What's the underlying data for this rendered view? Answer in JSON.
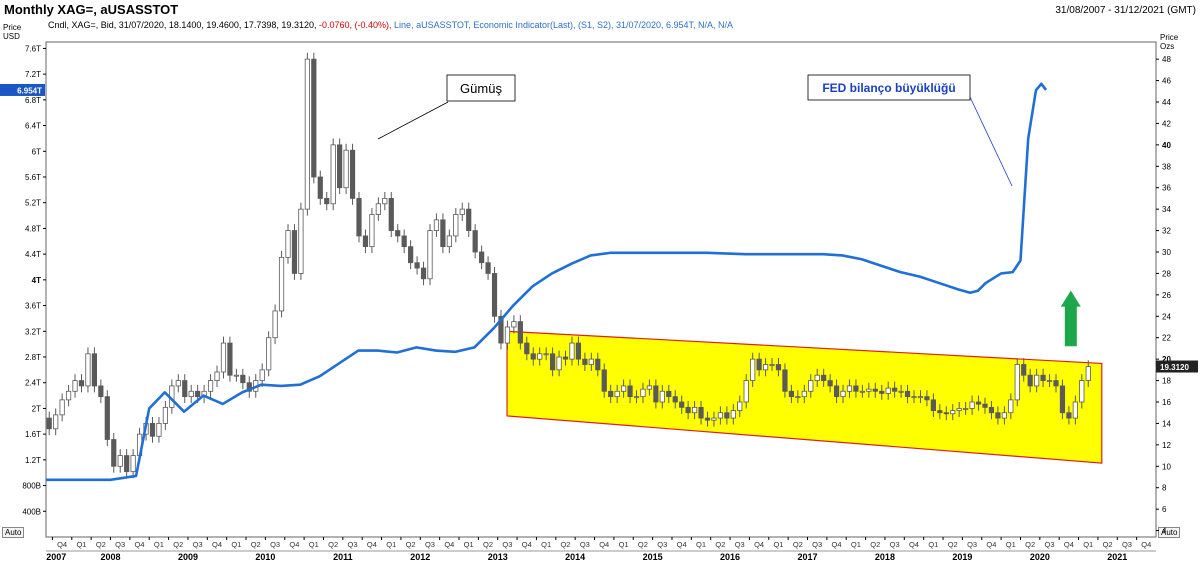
{
  "header": {
    "title": "Monthly XAG=, aUSASSTOT",
    "date_range": "31/08/2007 - 31/12/2021 (GMT)",
    "info_prefix": "Cndl, XAG=, Bid, 31/07/2020, 18.1400, 19.4600, 17.7398, 19.3120,",
    "info_change": "-0.0760, (-0.40%),",
    "info_line": "Line, aUSASSTOT, Economic Indicator(Last), (S1, S2), 31/07/2020, 6.954T, N/A, N/A"
  },
  "axes": {
    "left_unit_1": "Price",
    "left_unit_2": "USD",
    "right_unit_1": "Price",
    "right_unit_2": "Ozs",
    "auto_label": "Auto"
  },
  "annotations": {
    "silver": "Gümüş",
    "fed": "FED bilanço büyüklüğü"
  },
  "badges": {
    "left_value": "6.954T",
    "right_value": "19.3120"
  },
  "colors": {
    "fed_line": "#1f6fd6",
    "candle": "#5a5a5a",
    "channel_fill": "#ffff00",
    "channel_border": "#e02020",
    "arrow": "#1ca84a",
    "badge_blue": "#1a56c4",
    "fed_label": "#1a3fc4"
  },
  "chart_data": {
    "type": "line",
    "left_axis": {
      "unit": "USD",
      "ticks": [
        "400B",
        "800B",
        "1.2T",
        "1.6T",
        "2T",
        "2.4T",
        "2.8T",
        "3.2T",
        "3.6T",
        "4T",
        "4.4T",
        "4.8T",
        "5.2T",
        "5.6T",
        "6T",
        "6.4T",
        "6.8T",
        "7.2T",
        "7.6T"
      ],
      "bold_ticks": [
        "4T"
      ],
      "values": [
        0.4,
        0.8,
        1.2,
        1.6,
        2.0,
        2.4,
        2.8,
        3.2,
        3.6,
        4.0,
        4.4,
        4.8,
        5.2,
        5.6,
        6.0,
        6.4,
        6.8,
        7.2,
        7.6
      ],
      "ylim": [
        0.0,
        7.7
      ]
    },
    "right_axis": {
      "unit": "Ozs",
      "ticks": [
        "4",
        "6",
        "8",
        "10",
        "12",
        "14",
        "16",
        "18",
        "20",
        "22",
        "24",
        "26",
        "28",
        "30",
        "32",
        "34",
        "36",
        "38",
        "40",
        "42",
        "44",
        "46",
        "48"
      ],
      "bold_ticks": [
        "20",
        "40"
      ],
      "values": [
        4,
        6,
        8,
        10,
        12,
        14,
        16,
        18,
        20,
        22,
        24,
        26,
        28,
        30,
        32,
        34,
        36,
        38,
        40,
        42,
        44,
        46,
        48
      ],
      "ylim": [
        3.4,
        49.6
      ]
    },
    "x_axis": {
      "quarters": [
        "Q4",
        "Q1",
        "Q2",
        "Q3",
        "Q4",
        "Q1",
        "Q2",
        "Q3",
        "Q4",
        "Q1",
        "Q2",
        "Q3",
        "Q4",
        "Q1",
        "Q2",
        "Q3",
        "Q4",
        "Q1",
        "Q2",
        "Q3",
        "Q4",
        "Q1",
        "Q2",
        "Q3",
        "Q4",
        "Q1",
        "Q2",
        "Q3",
        "Q4",
        "Q1",
        "Q2",
        "Q3",
        "Q4",
        "Q1",
        "Q2",
        "Q3",
        "Q4",
        "Q1",
        "Q2",
        "Q3",
        "Q4",
        "Q1",
        "Q2",
        "Q3",
        "Q4",
        "Q1",
        "Q2",
        "Q3",
        "Q4",
        "Q1",
        "Q2",
        "Q3",
        "Q4",
        "Q1",
        "Q2",
        "Q3",
        "Q4",
        "Q1",
        "Q2",
        "Q3",
        "Q4"
      ],
      "years": [
        {
          "label": "2007",
          "x": 2007.8
        },
        {
          "label": "2008",
          "x": 2008.5
        },
        {
          "label": "2009",
          "x": 2009.5
        },
        {
          "label": "2010",
          "x": 2010.5
        },
        {
          "label": "2011",
          "x": 2011.5
        },
        {
          "label": "2012",
          "x": 2012.5
        },
        {
          "label": "2013",
          "x": 2013.5
        },
        {
          "label": "2014",
          "x": 2014.5
        },
        {
          "label": "2015",
          "x": 2015.5
        },
        {
          "label": "2016",
          "x": 2016.5
        },
        {
          "label": "2017",
          "x": 2017.5
        },
        {
          "label": "2018",
          "x": 2018.5
        },
        {
          "label": "2019",
          "x": 2019.5
        },
        {
          "label": "2020",
          "x": 2020.5
        },
        {
          "label": "2021",
          "x": 2021.5
        }
      ],
      "xlim": [
        2007.667,
        2022.0
      ]
    },
    "series": [
      {
        "axis": "left",
        "points": [
          [
            2007.67,
            0.89
          ],
          [
            2008.5,
            0.89
          ],
          [
            2008.83,
            0.95
          ],
          [
            2009.0,
            2.0
          ],
          [
            2009.2,
            2.25
          ],
          [
            2009.45,
            1.95
          ],
          [
            2009.7,
            2.2
          ],
          [
            2009.95,
            2.07
          ],
          [
            2010.2,
            2.25
          ],
          [
            2010.45,
            2.37
          ],
          [
            2010.7,
            2.35
          ],
          [
            2010.95,
            2.37
          ],
          [
            2011.2,
            2.5
          ],
          [
            2011.45,
            2.7
          ],
          [
            2011.7,
            2.9
          ],
          [
            2011.95,
            2.9
          ],
          [
            2012.2,
            2.87
          ],
          [
            2012.45,
            2.95
          ],
          [
            2012.7,
            2.9
          ],
          [
            2012.95,
            2.88
          ],
          [
            2013.2,
            2.95
          ],
          [
            2013.45,
            3.25
          ],
          [
            2013.7,
            3.6
          ],
          [
            2013.95,
            3.9
          ],
          [
            2014.2,
            4.1
          ],
          [
            2014.45,
            4.25
          ],
          [
            2014.7,
            4.38
          ],
          [
            2014.95,
            4.42
          ],
          [
            2015.2,
            4.42
          ],
          [
            2015.7,
            4.42
          ],
          [
            2016.2,
            4.42
          ],
          [
            2016.7,
            4.4
          ],
          [
            2017.2,
            4.4
          ],
          [
            2017.7,
            4.4
          ],
          [
            2017.95,
            4.38
          ],
          [
            2018.2,
            4.32
          ],
          [
            2018.45,
            4.22
          ],
          [
            2018.7,
            4.12
          ],
          [
            2018.95,
            4.05
          ],
          [
            2019.2,
            3.95
          ],
          [
            2019.45,
            3.85
          ],
          [
            2019.6,
            3.8
          ],
          [
            2019.7,
            3.83
          ],
          [
            2019.8,
            3.95
          ],
          [
            2020.0,
            4.1
          ],
          [
            2020.15,
            4.12
          ],
          [
            2020.25,
            4.3
          ],
          [
            2020.35,
            6.2
          ],
          [
            2020.45,
            6.95
          ],
          [
            2020.52,
            7.05
          ],
          [
            2020.58,
            6.954
          ]
        ]
      },
      {
        "axis": "right",
        "type": "candlestick",
        "months_per_candle": 1,
        "open": [
          14.5,
          13.5,
          14.8,
          16.2,
          17.0,
          18.0,
          17.5,
          20.5,
          17.5,
          16.5,
          12.5,
          10.0,
          11.0,
          9.5,
          11.0,
          13.0,
          14.0,
          12.8,
          14.0,
          15.5,
          17.5,
          18.0,
          16.5,
          17.0,
          16.5,
          17.0,
          18.0,
          18.8,
          21.5,
          18.5,
          18.5,
          17.8,
          17.0,
          18.0,
          19.0,
          22.0,
          24.5,
          29.5,
          32.0,
          28.0,
          34.0,
          48.0,
          37.0,
          35.0,
          34.5,
          40.0,
          36.0,
          39.5,
          35.0,
          31.5,
          30.5,
          33.5,
          34.5,
          35.0,
          32.0,
          31.5,
          30.5,
          29.0,
          28.5,
          27.5,
          32.0,
          33.0,
          30.5,
          31.5,
          33.5,
          34.0,
          32.0,
          30.0,
          29.0,
          28.0,
          24.0,
          21.5,
          23.0,
          23.5,
          21.5,
          20.5,
          20.0,
          20.5,
          20.5,
          19.0,
          20.2,
          20.0,
          21.5,
          20.0,
          19.5,
          20.0,
          19.0,
          17.0,
          16.5,
          17.0,
          17.5,
          16.5,
          16.5,
          17.2,
          17.5,
          16.0,
          17.0,
          16.5,
          16.0,
          15.5,
          15.0,
          15.5,
          14.5,
          14.3,
          14.5,
          15.0,
          14.5,
          15.2,
          16.0,
          18.0,
          20.0,
          19.0,
          19.5,
          19.5,
          19.0,
          17.0,
          16.5,
          16.5,
          17.0,
          18.0,
          18.5,
          18.0,
          17.5,
          16.5,
          17.0,
          17.5,
          17.0,
          17.0,
          17.2,
          17.0,
          16.8,
          17.3,
          17.0,
          17.0,
          16.5,
          16.5,
          16.5,
          16.2,
          15.2,
          15.0,
          14.9,
          15.2,
          15.4,
          15.4,
          16.0,
          15.8,
          15.5,
          15.0,
          14.5,
          15.0,
          16.2,
          19.5,
          18.5,
          17.5,
          18.5,
          18.0,
          18.0,
          17.5,
          15.0,
          14.5,
          16.0,
          18.0
        ],
        "close": [
          13.5,
          14.8,
          16.2,
          17.0,
          18.0,
          17.5,
          20.5,
          17.5,
          16.5,
          12.5,
          10.0,
          11.0,
          9.5,
          11.0,
          13.0,
          14.0,
          12.8,
          14.0,
          15.5,
          17.5,
          18.0,
          16.5,
          17.0,
          16.5,
          17.0,
          18.0,
          18.8,
          21.5,
          18.5,
          18.5,
          17.8,
          17.0,
          18.0,
          19.0,
          22.0,
          24.5,
          29.5,
          32.0,
          28.0,
          34.0,
          48.0,
          37.0,
          35.0,
          34.5,
          40.0,
          36.0,
          39.5,
          35.0,
          31.5,
          30.5,
          33.5,
          34.5,
          35.0,
          32.0,
          31.5,
          30.5,
          29.0,
          28.5,
          27.5,
          32.0,
          33.0,
          30.5,
          31.5,
          33.5,
          34.0,
          32.0,
          30.0,
          29.0,
          28.0,
          24.0,
          21.5,
          23.0,
          23.5,
          21.5,
          20.5,
          20.0,
          20.5,
          20.5,
          19.0,
          20.2,
          20.0,
          21.5,
          20.0,
          19.5,
          20.0,
          19.0,
          17.0,
          16.5,
          17.0,
          17.5,
          16.5,
          16.5,
          17.2,
          17.5,
          16.0,
          17.0,
          16.5,
          16.0,
          15.5,
          15.0,
          15.5,
          14.5,
          14.3,
          14.5,
          15.0,
          14.5,
          15.2,
          16.0,
          18.0,
          20.0,
          19.0,
          19.5,
          19.5,
          19.0,
          17.0,
          16.5,
          16.5,
          17.0,
          18.0,
          18.5,
          18.0,
          17.5,
          16.5,
          17.0,
          17.5,
          17.0,
          17.0,
          17.2,
          17.0,
          16.8,
          17.3,
          17.0,
          17.0,
          16.5,
          16.5,
          16.5,
          16.2,
          15.2,
          15.0,
          14.9,
          15.2,
          15.4,
          15.4,
          16.0,
          15.8,
          15.5,
          15.0,
          14.5,
          15.0,
          16.2,
          19.5,
          18.5,
          17.5,
          18.5,
          18.0,
          18.0,
          17.5,
          15.0,
          14.5,
          16.0,
          18.0,
          19.3
        ],
        "start": 2007.667
      }
    ]
  }
}
